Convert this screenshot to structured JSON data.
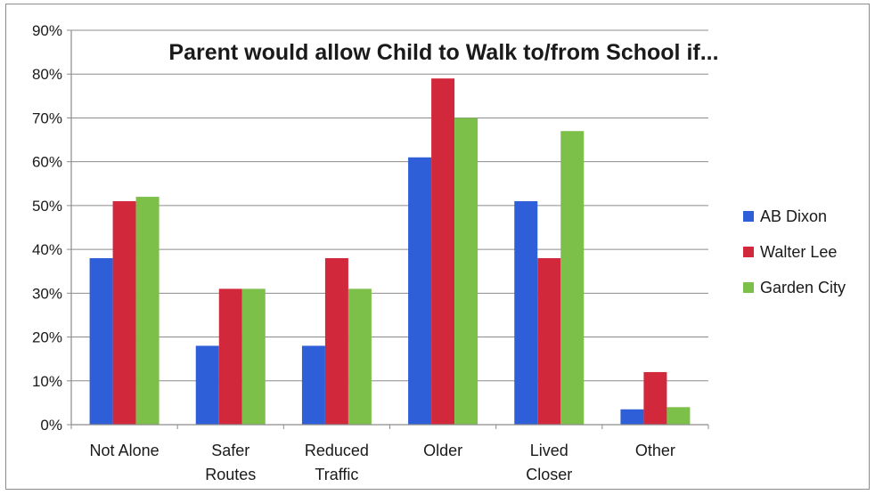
{
  "chart_data": {
    "type": "bar",
    "title": "Parent would allow Child to Walk to/from School if...",
    "categories": [
      "Not Alone",
      "Safer Routes",
      "Reduced Traffic",
      "Older",
      "Lived Closer",
      "Other"
    ],
    "category_lines": [
      [
        "Not Alone"
      ],
      [
        "Safer",
        "Routes"
      ],
      [
        "Reduced",
        "Traffic"
      ],
      [
        "Older"
      ],
      [
        "Lived",
        "Closer"
      ],
      [
        "Other"
      ]
    ],
    "series": [
      {
        "name": "AB Dixon",
        "color": "#2e5fd8",
        "values": [
          38,
          18,
          18,
          61,
          51,
          3.5
        ]
      },
      {
        "name": "Walter Lee",
        "color": "#d2283c",
        "values": [
          51,
          31,
          38,
          79,
          38,
          12
        ]
      },
      {
        "name": "Garden City",
        "color": "#7cc04a",
        "values": [
          52,
          31,
          31,
          70,
          67,
          4
        ]
      }
    ],
    "ylim": [
      0,
      90
    ],
    "yticks": [
      0,
      10,
      20,
      30,
      40,
      50,
      60,
      70,
      80,
      90
    ],
    "ytick_labels": [
      "0%",
      "10%",
      "20%",
      "30%",
      "40%",
      "50%",
      "60%",
      "70%",
      "80%",
      "90%"
    ],
    "grid": true,
    "legend_position": "right",
    "xlabel": "",
    "ylabel": ""
  }
}
